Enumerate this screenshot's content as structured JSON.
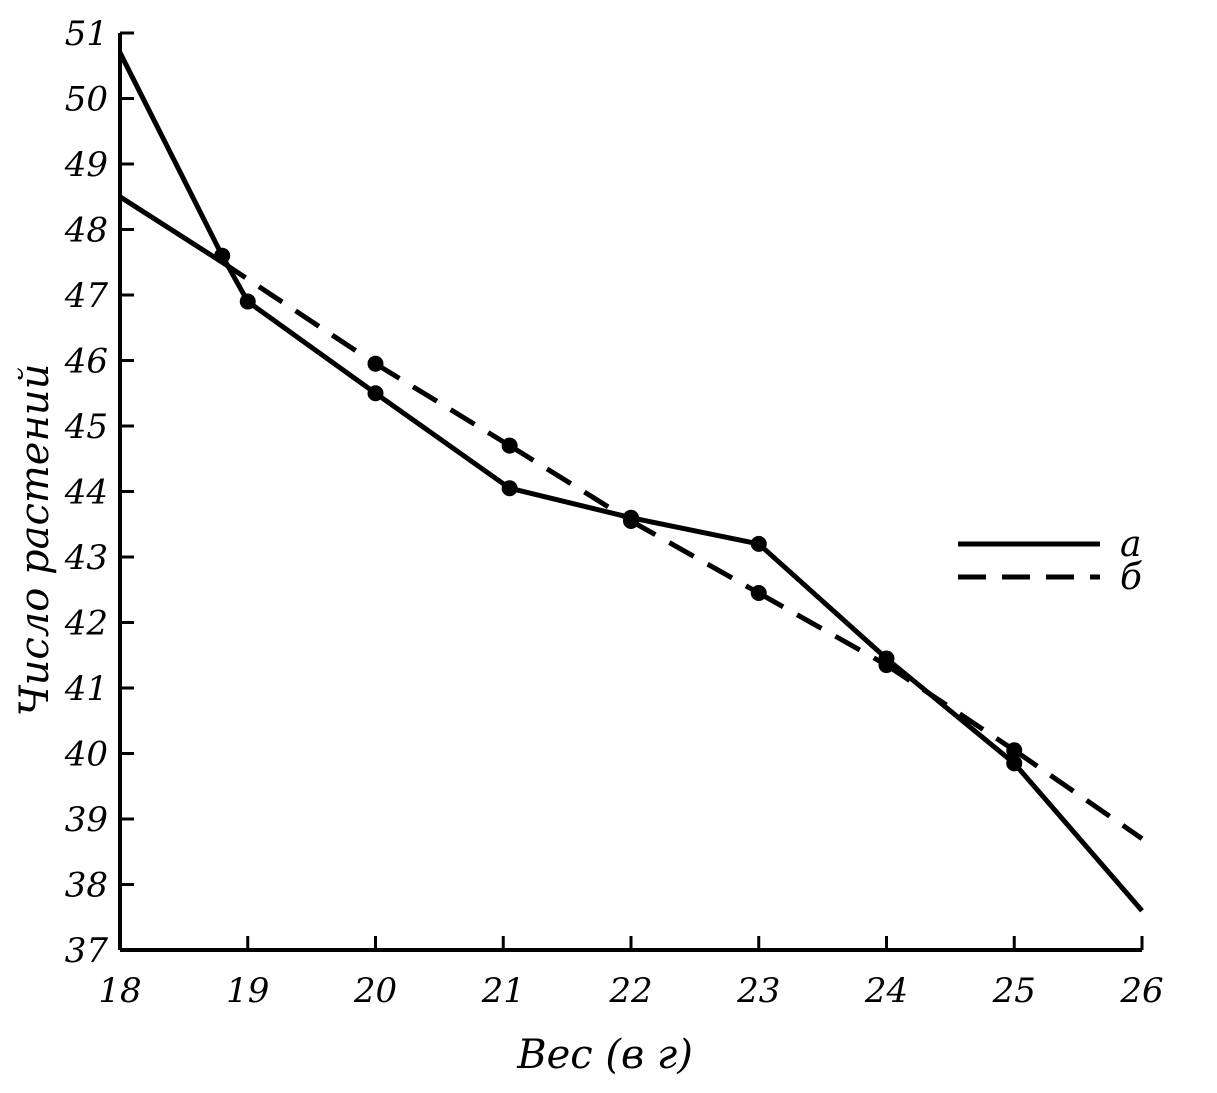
{
  "chart_data": {
    "type": "line",
    "title": "",
    "xlabel": "Вес (в г)",
    "ylabel": "Число растений",
    "xlim": [
      18,
      26
    ],
    "ylim": [
      37,
      51
    ],
    "x_ticks": [
      "18",
      "19",
      "20",
      "21",
      "22",
      "23",
      "24",
      "25",
      "26"
    ],
    "y_ticks": [
      "37",
      "38",
      "39",
      "40",
      "41",
      "42",
      "43",
      "44",
      "45",
      "46",
      "47",
      "48",
      "49",
      "50",
      "51"
    ],
    "grid": false,
    "legend_position": "right",
    "series": [
      {
        "name": "а",
        "style": "solid",
        "color": "#000000",
        "points": [
          {
            "x": 18.0,
            "y": 50.7
          },
          {
            "x": 18.8,
            "y": 47.6
          },
          {
            "x": 19.0,
            "y": 46.9
          },
          {
            "x": 20.0,
            "y": 45.5
          },
          {
            "x": 21.05,
            "y": 44.05
          },
          {
            "x": 22.0,
            "y": 43.6
          },
          {
            "x": 23.0,
            "y": 43.2
          },
          {
            "x": 24.0,
            "y": 41.45
          },
          {
            "x": 25.0,
            "y": 39.85
          },
          {
            "x": 26.0,
            "y": 37.6
          }
        ],
        "markers": [
          1,
          2,
          3,
          4,
          5,
          6,
          7,
          8
        ]
      },
      {
        "name": "б",
        "style": "dashed",
        "color": "#000000",
        "points": [
          {
            "x": 18.0,
            "y": 48.5
          },
          {
            "x": 18.8,
            "y": 47.5
          },
          {
            "x": 20.0,
            "y": 45.95
          },
          {
            "x": 21.05,
            "y": 44.7
          },
          {
            "x": 22.0,
            "y": 43.55
          },
          {
            "x": 23.0,
            "y": 42.45
          },
          {
            "x": 24.0,
            "y": 41.35
          },
          {
            "x": 25.0,
            "y": 40.05
          },
          {
            "x": 26.0,
            "y": 38.7
          }
        ],
        "markers": [
          2,
          3,
          4,
          5,
          6,
          7
        ],
        "solid_segments": [
          0
        ]
      }
    ]
  }
}
